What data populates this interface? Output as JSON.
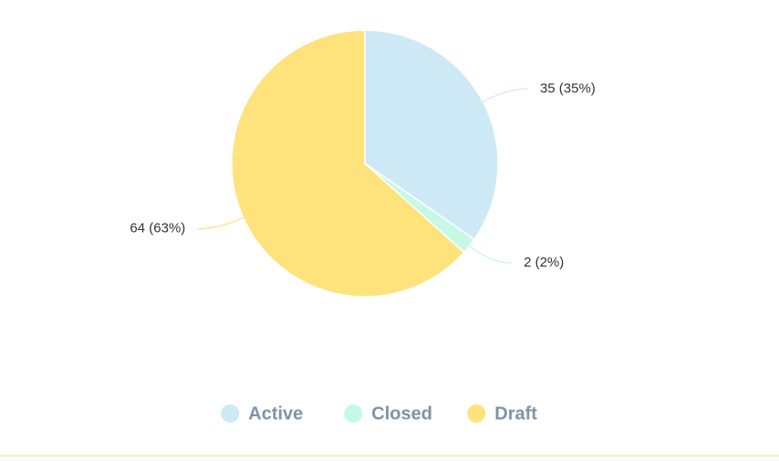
{
  "chart_data": {
    "type": "pie",
    "categories": [
      "Active",
      "Closed",
      "Draft"
    ],
    "values": [
      35,
      2,
      64
    ],
    "value_labels": [
      "35 (35%)",
      "2 (2%)",
      "64 (63%)"
    ],
    "colors": [
      "#cde9f5",
      "#c6f8e6",
      "#fee27b"
    ],
    "legend": "bottom"
  }
}
